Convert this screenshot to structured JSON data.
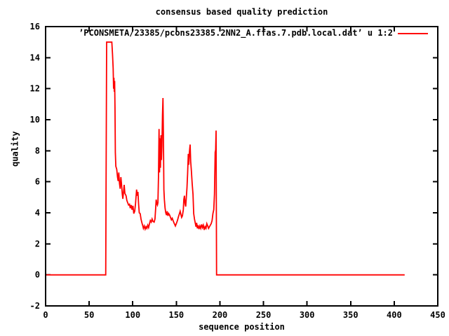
{
  "page": {
    "title": "consensus based quality prediction",
    "xlabel": "sequence position",
    "ylabel": "quality"
  },
  "legend": {
    "label": "’PCONSMETA/23385/pcons23385.2NN2_A.ffas.7.pdb.local.dat’ u 1:2",
    "line_color": "#ff0000"
  },
  "chart_data": {
    "type": "line",
    "title": "consensus based quality prediction",
    "xlabel": "sequence position",
    "ylabel": "quality",
    "xlim": [
      0,
      450
    ],
    "ylim": [
      -2,
      16
    ],
    "xticks": [
      0,
      50,
      100,
      150,
      200,
      250,
      300,
      350,
      400,
      450
    ],
    "yticks": [
      -2,
      0,
      2,
      4,
      6,
      8,
      10,
      12,
      14,
      16
    ],
    "grid": false,
    "legend_position": "top-right-inside",
    "background_color": "#ffffff",
    "axis_color": "#000000",
    "text_color": "#000000",
    "series": [
      {
        "name": "’PCONSMETA/23385/pcons23385.2NN2_A.ffas.7.pdb.local.dat’ u 1:2",
        "color": "#ff0000",
        "points": [
          [
            1,
            0
          ],
          [
            68,
            0
          ],
          [
            69,
            0
          ],
          [
            70,
            15
          ],
          [
            76,
            15
          ],
          [
            76.8,
            14.2
          ],
          [
            77.5,
            13.3
          ],
          [
            78,
            12.0
          ],
          [
            78.4,
            12.7
          ],
          [
            78.8,
            11.8
          ],
          [
            79.2,
            12.5
          ],
          [
            79.6,
            10.8
          ],
          [
            80,
            7.9
          ],
          [
            80.6,
            7.0
          ],
          [
            81.6,
            6.8
          ],
          [
            82.5,
            6.3
          ],
          [
            83.2,
            6.05
          ],
          [
            84,
            6.6
          ],
          [
            84.8,
            5.9
          ],
          [
            85.6,
            5.55
          ],
          [
            86.4,
            6.3
          ],
          [
            87.2,
            5.8
          ],
          [
            88,
            5.2
          ],
          [
            88.6,
            4.9
          ],
          [
            89.4,
            5.35
          ],
          [
            90.2,
            5.8
          ],
          [
            91,
            5.25
          ],
          [
            92.3,
            5.1
          ],
          [
            93.2,
            4.8
          ],
          [
            94.2,
            4.65
          ],
          [
            95.2,
            4.5
          ],
          [
            96.3,
            4.55
          ],
          [
            97.2,
            4.3
          ],
          [
            98.2,
            4.5
          ],
          [
            99.2,
            4.2
          ],
          [
            100.2,
            4.45
          ],
          [
            101.2,
            3.95
          ],
          [
            102.2,
            4.1
          ],
          [
            103.2,
            4.6
          ],
          [
            104.4,
            5.5
          ],
          [
            105.1,
            5.1
          ],
          [
            105.9,
            5.35
          ],
          [
            106.7,
            4.6
          ],
          [
            107.5,
            4.0
          ],
          [
            108.5,
            3.95
          ],
          [
            109.5,
            3.6
          ],
          [
            110.5,
            3.35
          ],
          [
            111.3,
            3.2
          ],
          [
            112.2,
            3.0
          ],
          [
            113.2,
            3.15
          ],
          [
            114.2,
            2.95
          ],
          [
            115.2,
            3.1
          ],
          [
            116.2,
            3.0
          ],
          [
            117.2,
            3.2
          ],
          [
            118.2,
            3.05
          ],
          [
            119.2,
            3.3
          ],
          [
            120.2,
            3.5
          ],
          [
            121.2,
            3.4
          ],
          [
            122.2,
            3.6
          ],
          [
            123.2,
            3.45
          ],
          [
            124.5,
            3.4
          ],
          [
            125.5,
            3.6
          ],
          [
            126.3,
            4.3
          ],
          [
            126.9,
            4.85
          ],
          [
            127.6,
            4.6
          ],
          [
            128.3,
            4.5
          ],
          [
            128.9,
            4.65
          ],
          [
            129.5,
            6.3
          ],
          [
            130.2,
            9.4
          ],
          [
            130.7,
            6.6
          ],
          [
            131.3,
            8.8
          ],
          [
            131.8,
            6.9
          ],
          [
            132.4,
            9.0
          ],
          [
            132.9,
            7.4
          ],
          [
            133.5,
            8.3
          ],
          [
            134.1,
            10.3
          ],
          [
            134.7,
            11.4
          ],
          [
            135.2,
            9.1
          ],
          [
            135.7,
            5.5
          ],
          [
            136.3,
            4.85
          ],
          [
            137.1,
            4.3
          ],
          [
            137.9,
            4.0
          ],
          [
            138.7,
            3.85
          ],
          [
            139.5,
            4.1
          ],
          [
            140.4,
            3.8
          ],
          [
            141.3,
            3.95
          ],
          [
            142.3,
            3.85
          ],
          [
            143.3,
            3.7
          ],
          [
            144.3,
            3.55
          ],
          [
            145.3,
            3.65
          ],
          [
            146.3,
            3.5
          ],
          [
            147.3,
            3.35
          ],
          [
            148.1,
            3.25
          ],
          [
            148.9,
            3.15
          ],
          [
            150,
            3.3
          ],
          [
            151.3,
            3.5
          ],
          [
            152.5,
            3.75
          ],
          [
            153.6,
            3.95
          ],
          [
            154.4,
            4.1
          ],
          [
            155.2,
            3.9
          ],
          [
            156.1,
            3.7
          ],
          [
            157,
            3.8
          ],
          [
            158,
            4.2
          ],
          [
            158.6,
            4.85
          ],
          [
            159.3,
            5.1
          ],
          [
            160,
            4.6
          ],
          [
            160.8,
            4.4
          ],
          [
            161.5,
            5.0
          ],
          [
            162.2,
            5.6
          ],
          [
            162.9,
            6.5
          ],
          [
            163.7,
            7.8
          ],
          [
            164.3,
            7.1
          ],
          [
            165,
            7.9
          ],
          [
            165.8,
            8.4
          ],
          [
            166.5,
            7.3
          ],
          [
            167.3,
            6.7
          ],
          [
            168.2,
            5.9
          ],
          [
            169.1,
            5.2
          ],
          [
            169.9,
            3.95
          ],
          [
            170.8,
            3.6
          ],
          [
            171.7,
            3.35
          ],
          [
            172.5,
            3.1
          ],
          [
            173.3,
            3.35
          ],
          [
            174.1,
            3.0
          ],
          [
            175,
            3.2
          ],
          [
            176,
            2.95
          ],
          [
            177,
            3.15
          ],
          [
            178,
            3.0
          ],
          [
            179,
            3.25
          ],
          [
            180,
            3.05
          ],
          [
            181,
            3.2
          ],
          [
            182,
            2.9
          ],
          [
            183,
            3.1
          ],
          [
            184,
            3.0
          ],
          [
            185,
            3.3
          ],
          [
            186,
            3.15
          ],
          [
            187,
            3.0
          ],
          [
            188,
            3.1
          ],
          [
            189,
            3.2
          ],
          [
            190,
            3.3
          ],
          [
            191,
            3.5
          ],
          [
            192,
            3.95
          ],
          [
            193,
            4.2
          ],
          [
            193.8,
            5.2
          ],
          [
            194.6,
            7.9
          ],
          [
            195.1,
            8.05
          ],
          [
            195.6,
            9.3
          ],
          [
            196.2,
            0
          ],
          [
            412,
            0
          ]
        ]
      }
    ]
  }
}
